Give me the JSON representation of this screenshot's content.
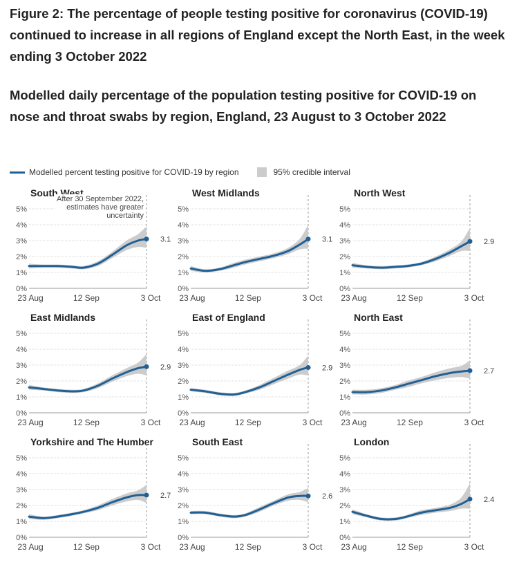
{
  "title": "Figure 2: The percentage of people testing positive for coronavirus (COVID-19) continued to increase in all regions of England except the North East, in the week ending 3 October 2022",
  "subtitle": "Modelled daily percentage of the population testing positive for COVID-19 on nose and throat swabs by region, England, 23 August to 3 October 2022",
  "legend": {
    "line_label": "Modelled percent testing positive for COVID-19 by region",
    "band_label": "95% credible interval"
  },
  "colors": {
    "line": "#206095",
    "band": "#cccccc",
    "grid": "#d9d9d9",
    "axis": "#999999",
    "text": "#222222"
  },
  "chart_data": [
    {
      "type": "line",
      "title": "South West",
      "x_ticks": [
        "23 Aug",
        "12 Sep",
        "3 Oct"
      ],
      "y_ticks": [
        "0%",
        "1%",
        "2%",
        "3%",
        "4%",
        "5%"
      ],
      "ylim": [
        0,
        5
      ],
      "grid": true,
      "annotation": "After 30 September 2022, estimates have greater uncertainty",
      "end_label": "3.1",
      "series": [
        {
          "x": [
            0,
            5,
            10,
            15,
            19,
            24,
            29,
            34,
            38,
            41
          ],
          "y": [
            1.4,
            1.4,
            1.4,
            1.35,
            1.3,
            1.55,
            2.1,
            2.7,
            3.0,
            3.1
          ],
          "lower": [
            1.25,
            1.3,
            1.3,
            1.25,
            1.2,
            1.4,
            1.9,
            2.4,
            2.6,
            2.55
          ],
          "upper": [
            1.55,
            1.5,
            1.5,
            1.45,
            1.4,
            1.7,
            2.3,
            3.0,
            3.4,
            3.9
          ]
        }
      ]
    },
    {
      "type": "line",
      "title": "West Midlands",
      "x_ticks": [
        "23 Aug",
        "12 Sep",
        "3 Oct"
      ],
      "y_ticks": [
        "0%",
        "1%",
        "2%",
        "3%",
        "4%",
        "5%"
      ],
      "ylim": [
        0,
        5
      ],
      "grid": true,
      "end_label": "3.1",
      "series": [
        {
          "x": [
            0,
            5,
            10,
            15,
            19,
            24,
            29,
            34,
            38,
            41
          ],
          "y": [
            1.25,
            1.1,
            1.2,
            1.45,
            1.65,
            1.85,
            2.05,
            2.35,
            2.75,
            3.1
          ],
          "lower": [
            1.1,
            1.0,
            1.1,
            1.3,
            1.5,
            1.7,
            1.9,
            2.15,
            2.45,
            2.5
          ],
          "upper": [
            1.4,
            1.2,
            1.3,
            1.6,
            1.8,
            2.0,
            2.2,
            2.55,
            3.1,
            4.0
          ]
        }
      ]
    },
    {
      "type": "line",
      "title": "North West",
      "x_ticks": [
        "23 Aug",
        "12 Sep",
        "3 Oct"
      ],
      "y_ticks": [
        "0%",
        "1%",
        "2%",
        "3%",
        "4%",
        "5%"
      ],
      "ylim": [
        0,
        5
      ],
      "grid": true,
      "end_label": "2.9",
      "series": [
        {
          "x": [
            0,
            5,
            10,
            15,
            19,
            24,
            29,
            34,
            38,
            41
          ],
          "y": [
            1.45,
            1.35,
            1.3,
            1.35,
            1.4,
            1.55,
            1.85,
            2.25,
            2.65,
            2.95
          ],
          "lower": [
            1.3,
            1.25,
            1.2,
            1.25,
            1.3,
            1.45,
            1.7,
            2.05,
            2.35,
            2.35
          ],
          "upper": [
            1.6,
            1.45,
            1.4,
            1.45,
            1.5,
            1.65,
            2.0,
            2.45,
            2.95,
            3.8
          ]
        }
      ]
    },
    {
      "type": "line",
      "title": "East Midlands",
      "x_ticks": [
        "23 Aug",
        "12 Sep",
        "3 Oct"
      ],
      "y_ticks": [
        "0%",
        "1%",
        "2%",
        "3%",
        "4%",
        "5%"
      ],
      "ylim": [
        0,
        5
      ],
      "grid": true,
      "end_label": "2.9",
      "series": [
        {
          "x": [
            0,
            5,
            10,
            15,
            19,
            24,
            29,
            34,
            38,
            41
          ],
          "y": [
            1.6,
            1.5,
            1.4,
            1.35,
            1.4,
            1.7,
            2.15,
            2.55,
            2.8,
            2.9
          ],
          "lower": [
            1.45,
            1.4,
            1.3,
            1.25,
            1.3,
            1.55,
            1.95,
            2.3,
            2.45,
            2.35
          ],
          "upper": [
            1.75,
            1.6,
            1.5,
            1.45,
            1.5,
            1.85,
            2.35,
            2.8,
            3.15,
            3.7
          ]
        }
      ]
    },
    {
      "type": "line",
      "title": "East of England",
      "x_ticks": [
        "23 Aug",
        "12 Sep",
        "3 Oct"
      ],
      "y_ticks": [
        "0%",
        "1%",
        "2%",
        "3%",
        "4%",
        "5%"
      ],
      "ylim": [
        0,
        5
      ],
      "grid": true,
      "end_label": "2.9",
      "series": [
        {
          "x": [
            0,
            5,
            10,
            15,
            19,
            24,
            29,
            34,
            38,
            41
          ],
          "y": [
            1.45,
            1.35,
            1.2,
            1.15,
            1.3,
            1.6,
            2.0,
            2.4,
            2.7,
            2.85
          ],
          "lower": [
            1.35,
            1.25,
            1.1,
            1.05,
            1.2,
            1.45,
            1.8,
            2.15,
            2.4,
            2.35
          ],
          "upper": [
            1.55,
            1.45,
            1.3,
            1.25,
            1.4,
            1.75,
            2.2,
            2.65,
            3.0,
            3.6
          ]
        }
      ]
    },
    {
      "type": "line",
      "title": "North East",
      "x_ticks": [
        "23 Aug",
        "12 Sep",
        "3 Oct"
      ],
      "y_ticks": [
        "0%",
        "1%",
        "2%",
        "3%",
        "4%",
        "5%"
      ],
      "ylim": [
        0,
        5
      ],
      "grid": true,
      "end_label": "2.7",
      "series": [
        {
          "x": [
            0,
            5,
            10,
            15,
            19,
            24,
            29,
            34,
            38,
            41
          ],
          "y": [
            1.3,
            1.3,
            1.4,
            1.6,
            1.8,
            2.05,
            2.3,
            2.5,
            2.6,
            2.65
          ],
          "lower": [
            1.15,
            1.15,
            1.25,
            1.45,
            1.6,
            1.85,
            2.05,
            2.2,
            2.25,
            2.15
          ],
          "upper": [
            1.45,
            1.45,
            1.55,
            1.75,
            2.0,
            2.25,
            2.55,
            2.8,
            2.95,
            3.3
          ]
        }
      ]
    },
    {
      "type": "line",
      "title": "Yorkshire and The Humber",
      "x_ticks": [
        "23 Aug",
        "12 Sep",
        "3 Oct"
      ],
      "y_ticks": [
        "0%",
        "1%",
        "2%",
        "3%",
        "4%",
        "5%"
      ],
      "ylim": [
        0,
        5
      ],
      "grid": true,
      "end_label": "2.7",
      "series": [
        {
          "x": [
            0,
            5,
            10,
            15,
            19,
            24,
            29,
            34,
            38,
            41
          ],
          "y": [
            1.3,
            1.2,
            1.3,
            1.45,
            1.6,
            1.85,
            2.2,
            2.5,
            2.65,
            2.65
          ],
          "lower": [
            1.15,
            1.1,
            1.2,
            1.35,
            1.5,
            1.7,
            2.0,
            2.25,
            2.35,
            2.15
          ],
          "upper": [
            1.45,
            1.3,
            1.4,
            1.55,
            1.7,
            2.0,
            2.4,
            2.75,
            2.95,
            3.3
          ]
        }
      ]
    },
    {
      "type": "line",
      "title": "South East",
      "x_ticks": [
        "23 Aug",
        "12 Sep",
        "3 Oct"
      ],
      "y_ticks": [
        "0%",
        "1%",
        "2%",
        "3%",
        "4%",
        "5%"
      ],
      "ylim": [
        0,
        5
      ],
      "grid": true,
      "end_label": "2.6",
      "series": [
        {
          "x": [
            0,
            5,
            10,
            15,
            19,
            24,
            29,
            34,
            38,
            41
          ],
          "y": [
            1.55,
            1.55,
            1.4,
            1.3,
            1.4,
            1.75,
            2.15,
            2.5,
            2.6,
            2.6
          ],
          "lower": [
            1.45,
            1.45,
            1.3,
            1.2,
            1.3,
            1.6,
            2.0,
            2.3,
            2.35,
            2.2
          ],
          "upper": [
            1.65,
            1.65,
            1.5,
            1.4,
            1.5,
            1.9,
            2.3,
            2.7,
            2.85,
            3.1
          ]
        }
      ]
    },
    {
      "type": "line",
      "title": "London",
      "x_ticks": [
        "23 Aug",
        "12 Sep",
        "3 Oct"
      ],
      "y_ticks": [
        "0%",
        "1%",
        "2%",
        "3%",
        "4%",
        "5%"
      ],
      "ylim": [
        0,
        5
      ],
      "grid": true,
      "end_label": "2.4",
      "series": [
        {
          "x": [
            0,
            5,
            10,
            15,
            19,
            24,
            29,
            34,
            38,
            41
          ],
          "y": [
            1.6,
            1.35,
            1.15,
            1.15,
            1.3,
            1.55,
            1.7,
            1.85,
            2.1,
            2.4
          ],
          "lower": [
            1.45,
            1.25,
            1.05,
            1.05,
            1.2,
            1.4,
            1.55,
            1.65,
            1.8,
            1.8
          ],
          "upper": [
            1.75,
            1.45,
            1.25,
            1.25,
            1.4,
            1.7,
            1.85,
            2.05,
            2.5,
            3.4
          ]
        }
      ]
    }
  ]
}
